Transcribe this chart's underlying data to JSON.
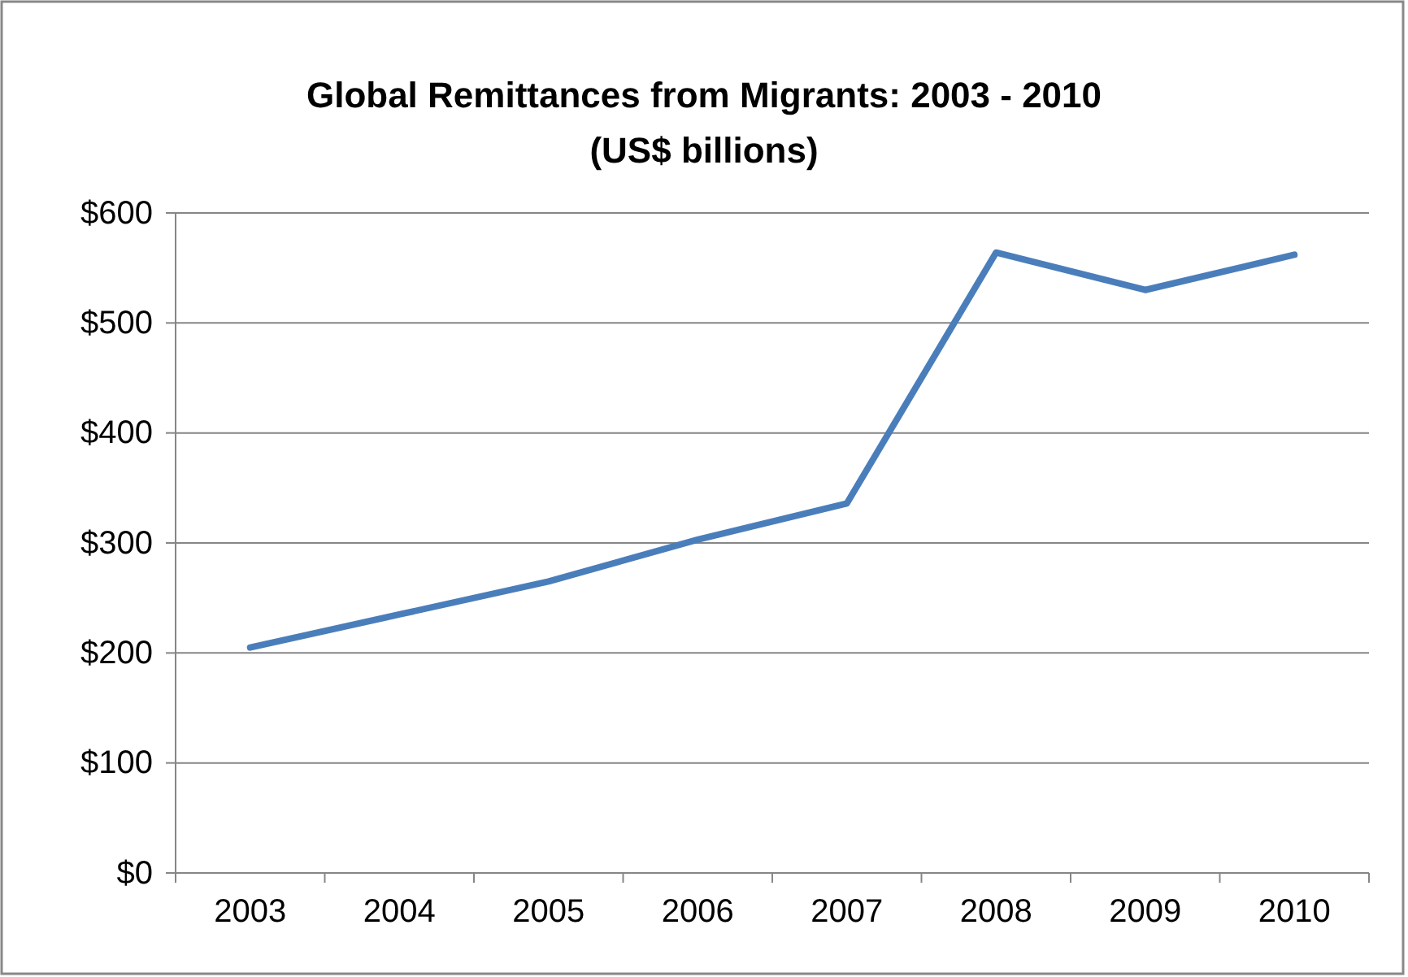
{
  "chart_data": {
    "type": "line",
    "title": "Global Remittances from Migrants: 2003 - 2010",
    "subtitle": "(US$ billions)",
    "categories": [
      "2003",
      "2004",
      "2005",
      "2006",
      "2007",
      "2008",
      "2009",
      "2010"
    ],
    "series": [
      {
        "color": "#4a7ebb",
        "values": [
          205,
          235,
          265,
          303,
          336,
          564,
          530,
          562
        ]
      }
    ],
    "ylim": [
      0,
      600
    ],
    "yticks": [
      {
        "value": 0,
        "label": "$0"
      },
      {
        "value": 100,
        "label": "$100"
      },
      {
        "value": 200,
        "label": "$200"
      },
      {
        "value": 300,
        "label": "$300"
      },
      {
        "value": 400,
        "label": "$400"
      },
      {
        "value": 500,
        "label": "$500"
      },
      {
        "value": 600,
        "label": "$600"
      }
    ],
    "grid": "y",
    "marker": "none",
    "line_style": "solid"
  }
}
